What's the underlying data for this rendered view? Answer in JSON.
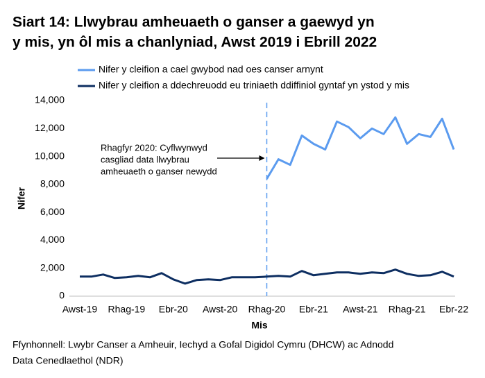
{
  "chart_data": {
    "type": "line",
    "title": [
      "Siart 14: Llwybrau amheuaeth o ganser a gaewyd yn",
      "y mis, yn ôl mis a chanlyniad, Awst 2019 i Ebrill 2022"
    ],
    "x_label": "Mis",
    "y_label": "Nifer",
    "source": [
      "Ffynhonnell: Lwybr Canser a Amheuir, Iechyd a Gofal Digidol Cymru (DHCW) ac Adnodd",
      "Data Cenedlaethol (NDR)"
    ],
    "categories": [
      "Awst-19",
      null,
      null,
      null,
      "Rhag-19",
      null,
      null,
      null,
      "Ebr-20",
      null,
      null,
      null,
      "Awst-20",
      null,
      null,
      null,
      "Rhag-20",
      null,
      null,
      null,
      "Ebr-21",
      null,
      null,
      null,
      "Awst-21",
      null,
      null,
      null,
      "Rhag-21",
      null,
      null,
      null,
      "Ebr-22"
    ],
    "series": [
      {
        "name": "Nifer y cleifion a cael gwybod nad oes canser arnynt",
        "color": "#5b9bef",
        "values": [
          null,
          null,
          null,
          null,
          null,
          null,
          null,
          null,
          null,
          null,
          null,
          null,
          null,
          null,
          null,
          null,
          8400,
          9800,
          9400,
          11500,
          10900,
          10500,
          12500,
          12100,
          11300,
          12000,
          11600,
          12800,
          10900,
          11600,
          11400,
          12700,
          10500
        ]
      },
      {
        "name": "Nifer y cleifion a ddechreuodd eu triniaeth ddiffiniol gyntaf yn ystod y mis",
        "color": "#0d2e61",
        "values": [
          1400,
          1400,
          1550,
          1300,
          1350,
          1450,
          1350,
          1650,
          1200,
          900,
          1150,
          1200,
          1150,
          1350,
          1350,
          1350,
          1400,
          1450,
          1400,
          1800,
          1500,
          1600,
          1700,
          1700,
          1600,
          1700,
          1650,
          1900,
          1600,
          1450,
          1500,
          1750,
          1400
        ]
      }
    ],
    "ylim": [
      0,
      14000
    ],
    "yticks": [
      0,
      {
        "value": 2000,
        "label": "2,000"
      },
      {
        "value": 4000,
        "label": "4,000"
      },
      {
        "value": 6000,
        "label": "6,000"
      },
      {
        "value": 8000,
        "label": "8,000"
      },
      {
        "value": 10000,
        "label": "10,000"
      },
      {
        "value": 12000,
        "label": "12,000"
      },
      {
        "value": 14000,
        "label": "14,000"
      }
    ],
    "grid": false,
    "annotation": {
      "text": [
        "Rhagfyr 2020: Cyflwynwyd",
        "casgliad data llwybrau",
        "amheuaeth o ganser newydd"
      ],
      "category": "Rhag-20"
    }
  }
}
